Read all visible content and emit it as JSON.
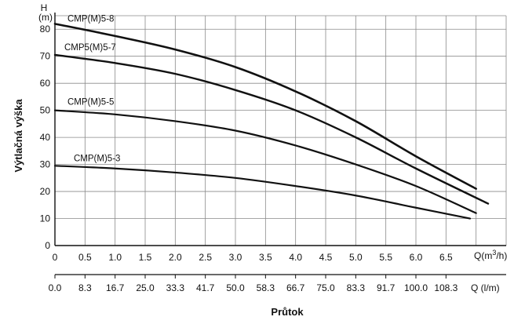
{
  "chart_data": {
    "type": "line",
    "ylabel": "Výtlačná výška",
    "y_unit": "(m)",
    "y_symbol": "H",
    "xlabel": "Průtok",
    "x_unit_primary": "Q(m³/h)",
    "x_unit_secondary": "Q (l/m)",
    "ylim": [
      0,
      85
    ],
    "xlim": [
      0,
      7.5
    ],
    "y_ticks": [
      "0",
      "10",
      "20",
      "30",
      "40",
      "50",
      "60",
      "70",
      "80"
    ],
    "x_ticks": [
      "0",
      "0.5",
      "1.0",
      "1.5",
      "2.0",
      "2.5",
      "3.0",
      "3.5",
      "4.0",
      "4.5",
      "5.0",
      "5.5",
      "6.0",
      "6.5"
    ],
    "x2_ticks": [
      "0.0",
      "8.3",
      "16.7",
      "25.0",
      "33.3",
      "41.7",
      "50.0",
      "58.3",
      "66.7",
      "75.0",
      "83.3",
      "91.7",
      "100.0",
      "108.3"
    ],
    "grid": true,
    "series": [
      {
        "name": "CMP(M)5-8",
        "x": [
          0,
          1,
          2,
          3,
          4,
          5,
          6,
          7.0
        ],
        "y": [
          82,
          77.5,
          72.5,
          66,
          57,
          46,
          33,
          21
        ]
      },
      {
        "name": "CMP5(M)5-7",
        "x": [
          0,
          1,
          2,
          3,
          4,
          5,
          6,
          7.2
        ],
        "y": [
          70.5,
          67.5,
          63.5,
          57.5,
          50,
          40,
          28.5,
          15.5
        ]
      },
      {
        "name": "CMP(M)5-5",
        "x": [
          0,
          1,
          2,
          3,
          4,
          5,
          6,
          7.0
        ],
        "y": [
          50,
          48.5,
          46,
          42.5,
          37,
          30,
          22,
          12
        ]
      },
      {
        "name": "CMP(M)5-3",
        "x": [
          0,
          1,
          2,
          3,
          4,
          5,
          6,
          6.9
        ],
        "y": [
          29.5,
          28.5,
          27,
          25,
          22,
          18.5,
          14,
          10
        ]
      }
    ]
  }
}
